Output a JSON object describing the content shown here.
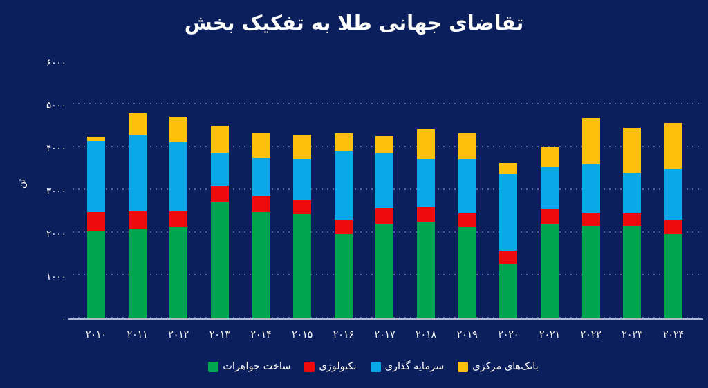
{
  "chart_data": {
    "type": "bar",
    "variant": "stacked",
    "title": "تقاضای جهانی طلا به تفکیک بخش",
    "ylabel": "تن",
    "xlabel": "",
    "ylim": [
      0,
      6000
    ],
    "ytick_step": 1000,
    "ytick_labels": [
      "۰",
      "۱۰۰۰",
      "۲۰۰۰",
      "۳۰۰۰",
      "۴۰۰۰",
      "۵۰۰۰",
      "۶۰۰۰"
    ],
    "grid": "horizontal-dotted",
    "legend_position": "bottom",
    "background_color": "#0a1f5c",
    "text_color": "#ffffff",
    "axis_line_color": "#b2b9cf",
    "categories": [
      "۲۰۱۰",
      "۲۰۱۱",
      "۲۰۱۲",
      "۲۰۱۳",
      "۲۰۱۴",
      "۲۰۱۵",
      "۲۰۱۶",
      "۲۰۱۷",
      "۲۰۱۸",
      "۲۰۱۹",
      "۲۰۲۰",
      "۲۰۲۱",
      "۲۰۲۲",
      "۲۰۲۳",
      "۲۰۲۴"
    ],
    "series": [
      {
        "name": "ساخت جواهرات",
        "color": "#00a64f",
        "values": [
          2060,
          2110,
          2165,
          2755,
          2513,
          2460,
          2005,
          2246,
          2283,
          2166,
          1307,
          2246,
          2192,
          2192,
          2005
        ]
      },
      {
        "name": "تکنولوژی",
        "color": "#ee0b0b",
        "values": [
          455,
          430,
          375,
          375,
          375,
          333,
          338,
          359,
          349,
          322,
          306,
          332,
          312,
          296,
          338
        ]
      },
      {
        "name": "سرمایه گذاری",
        "color": "#09a8e6",
        "values": [
          1665,
          1770,
          1610,
          775,
          885,
          965,
          1608,
          1287,
          1131,
          1259,
          1796,
          992,
          1126,
          948,
          1179
        ]
      },
      {
        "name": "بانک‌های مرکزی",
        "color": "#fcc00d",
        "values": [
          100,
          510,
          590,
          630,
          605,
          567,
          399,
          391,
          681,
          606,
          257,
          461,
          1082,
          1051,
          1072
        ]
      }
    ]
  }
}
